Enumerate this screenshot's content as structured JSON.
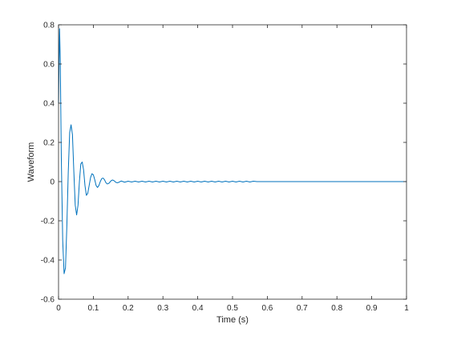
{
  "chart_data": {
    "type": "line",
    "title": "",
    "xlabel": "Time (s)",
    "ylabel": "Waveform",
    "xlim": [
      0,
      1
    ],
    "ylim": [
      -0.6,
      0.8
    ],
    "xticks": [
      0,
      0.1,
      0.2,
      0.3,
      0.4,
      0.5,
      0.6,
      0.7,
      0.8,
      0.9,
      1
    ],
    "xtick_labels": [
      "0",
      "0.1",
      "0.2",
      "0.3",
      "0.4",
      "0.5",
      "0.6",
      "0.7",
      "0.8",
      "0.9",
      "1"
    ],
    "yticks": [
      -0.6,
      -0.4,
      -0.2,
      0,
      0.2,
      0.4,
      0.6,
      0.8
    ],
    "ytick_labels": [
      "-0.6",
      "-0.4",
      "-0.2",
      "0",
      "0.2",
      "0.4",
      "0.6",
      "0.8"
    ],
    "grid": false,
    "series": [
      {
        "color": "#0072BD",
        "x": [
          0,
          0.003,
          0.005,
          0.008,
          0.012,
          0.016,
          0.02,
          0.024,
          0.028,
          0.032,
          0.036,
          0.04,
          0.044,
          0.048,
          0.052,
          0.056,
          0.06,
          0.064,
          0.068,
          0.072,
          0.076,
          0.08,
          0.084,
          0.088,
          0.092,
          0.096,
          0.1,
          0.104,
          0.108,
          0.112,
          0.116,
          0.12,
          0.124,
          0.128,
          0.132,
          0.136,
          0.14,
          0.144,
          0.148,
          0.152,
          0.156,
          0.16,
          0.165,
          0.17,
          0.175,
          0.18,
          0.19,
          0.2,
          0.21,
          0.22,
          0.23,
          0.24,
          0.25,
          0.26,
          0.27,
          0.28,
          0.29,
          0.3,
          0.31,
          0.32,
          0.33,
          0.34,
          0.35,
          0.36,
          0.37,
          0.38,
          0.39,
          0.4,
          0.41,
          0.42,
          0.43,
          0.44,
          0.45,
          0.46,
          0.47,
          0.48,
          0.49,
          0.5,
          0.51,
          0.52,
          0.53,
          0.54,
          0.55,
          0.56,
          0.57,
          0.6,
          0.7,
          0.8,
          0.9,
          1.0
        ],
        "y": [
          0.4,
          0.78,
          0.62,
          0.12,
          -0.3,
          -0.47,
          -0.44,
          -0.22,
          0.05,
          0.25,
          0.29,
          0.24,
          0.05,
          -0.12,
          -0.17,
          -0.12,
          0.0,
          0.09,
          0.1,
          0.06,
          -0.02,
          -0.07,
          -0.06,
          -0.02,
          0.02,
          0.04,
          0.035,
          0.01,
          -0.02,
          -0.03,
          -0.02,
          0.0,
          0.015,
          0.018,
          0.01,
          -0.005,
          -0.012,
          -0.01,
          -0.002,
          0.006,
          0.008,
          0.004,
          -0.004,
          -0.006,
          -0.002,
          0.003,
          -0.003,
          0.002,
          -0.002,
          0.002,
          -0.002,
          0.002,
          -0.002,
          0.002,
          -0.002,
          0.002,
          -0.002,
          0.002,
          -0.002,
          0.002,
          -0.002,
          0.002,
          -0.002,
          0.002,
          -0.002,
          0.002,
          -0.002,
          0.002,
          -0.002,
          0.002,
          -0.002,
          0.002,
          -0.002,
          0.002,
          -0.002,
          0.002,
          -0.002,
          0.002,
          -0.002,
          0.002,
          -0.002,
          0.002,
          -0.002,
          0.002,
          0.0,
          0.0,
          0.0,
          0.0,
          0.0,
          0.0
        ]
      }
    ]
  }
}
